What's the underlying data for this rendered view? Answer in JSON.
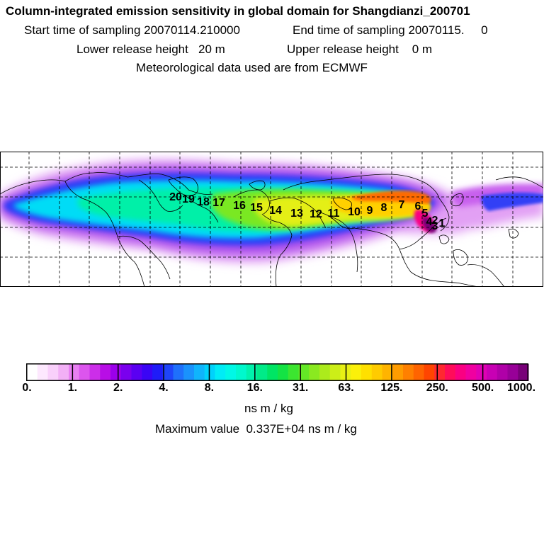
{
  "header": {
    "title": "Column-integrated emission sensitivity in global domain for Shangdianzi_200701",
    "start_label": "Start time of sampling 20070114.210000",
    "end_label": "End time of sampling 20070115.     0",
    "lower_label": "Lower release height   20 m",
    "upper_label": "Upper release height    0 m",
    "met_label": "Meteorological data used are from ECMWF"
  },
  "map": {
    "trajectory_labels": [
      "1",
      "2",
      "3",
      "4",
      "5",
      "6",
      "7",
      "8",
      "9",
      "10",
      "11",
      "12",
      "13",
      "14",
      "15",
      "16",
      "17",
      "18",
      "19",
      "20"
    ]
  },
  "colorbar": {
    "tick_labels": [
      "0.",
      "1.",
      "2.",
      "4.",
      "8.",
      "16.",
      "31.",
      "63.",
      "125.",
      "250.",
      "500.",
      "1000."
    ],
    "unit": "ns m / kg",
    "max_value_text": "Maximum value  0.337E+04 ns m / kg",
    "colors": [
      "#ffffff",
      "#fde8fe",
      "#f9d0fb",
      "#f2b0f6",
      "#e880f2",
      "#dc55ee",
      "#cc2ee9",
      "#b80ee6",
      "#9b00ea",
      "#7a00ee",
      "#5a00f2",
      "#3a05f5",
      "#1f1cf8",
      "#1f45fa",
      "#1f70fb",
      "#1a92fc",
      "#10b4fc",
      "#00d2fc",
      "#00ecf6",
      "#00f8e6",
      "#00f8cd",
      "#00f2ac",
      "#00eb88",
      "#00e564",
      "#14e344",
      "#3ce530",
      "#64e826",
      "#8ae920",
      "#aceb1c",
      "#ccee18",
      "#e8f014",
      "#fbf00a",
      "#ffe000",
      "#ffcb00",
      "#ffb400",
      "#ff9c00",
      "#ff8000",
      "#ff6400",
      "#ff4500",
      "#ff2830",
      "#ff0c5a",
      "#fa0082",
      "#f000a0",
      "#e000b4",
      "#c800b4",
      "#b000a8",
      "#980098",
      "#780078"
    ]
  }
}
